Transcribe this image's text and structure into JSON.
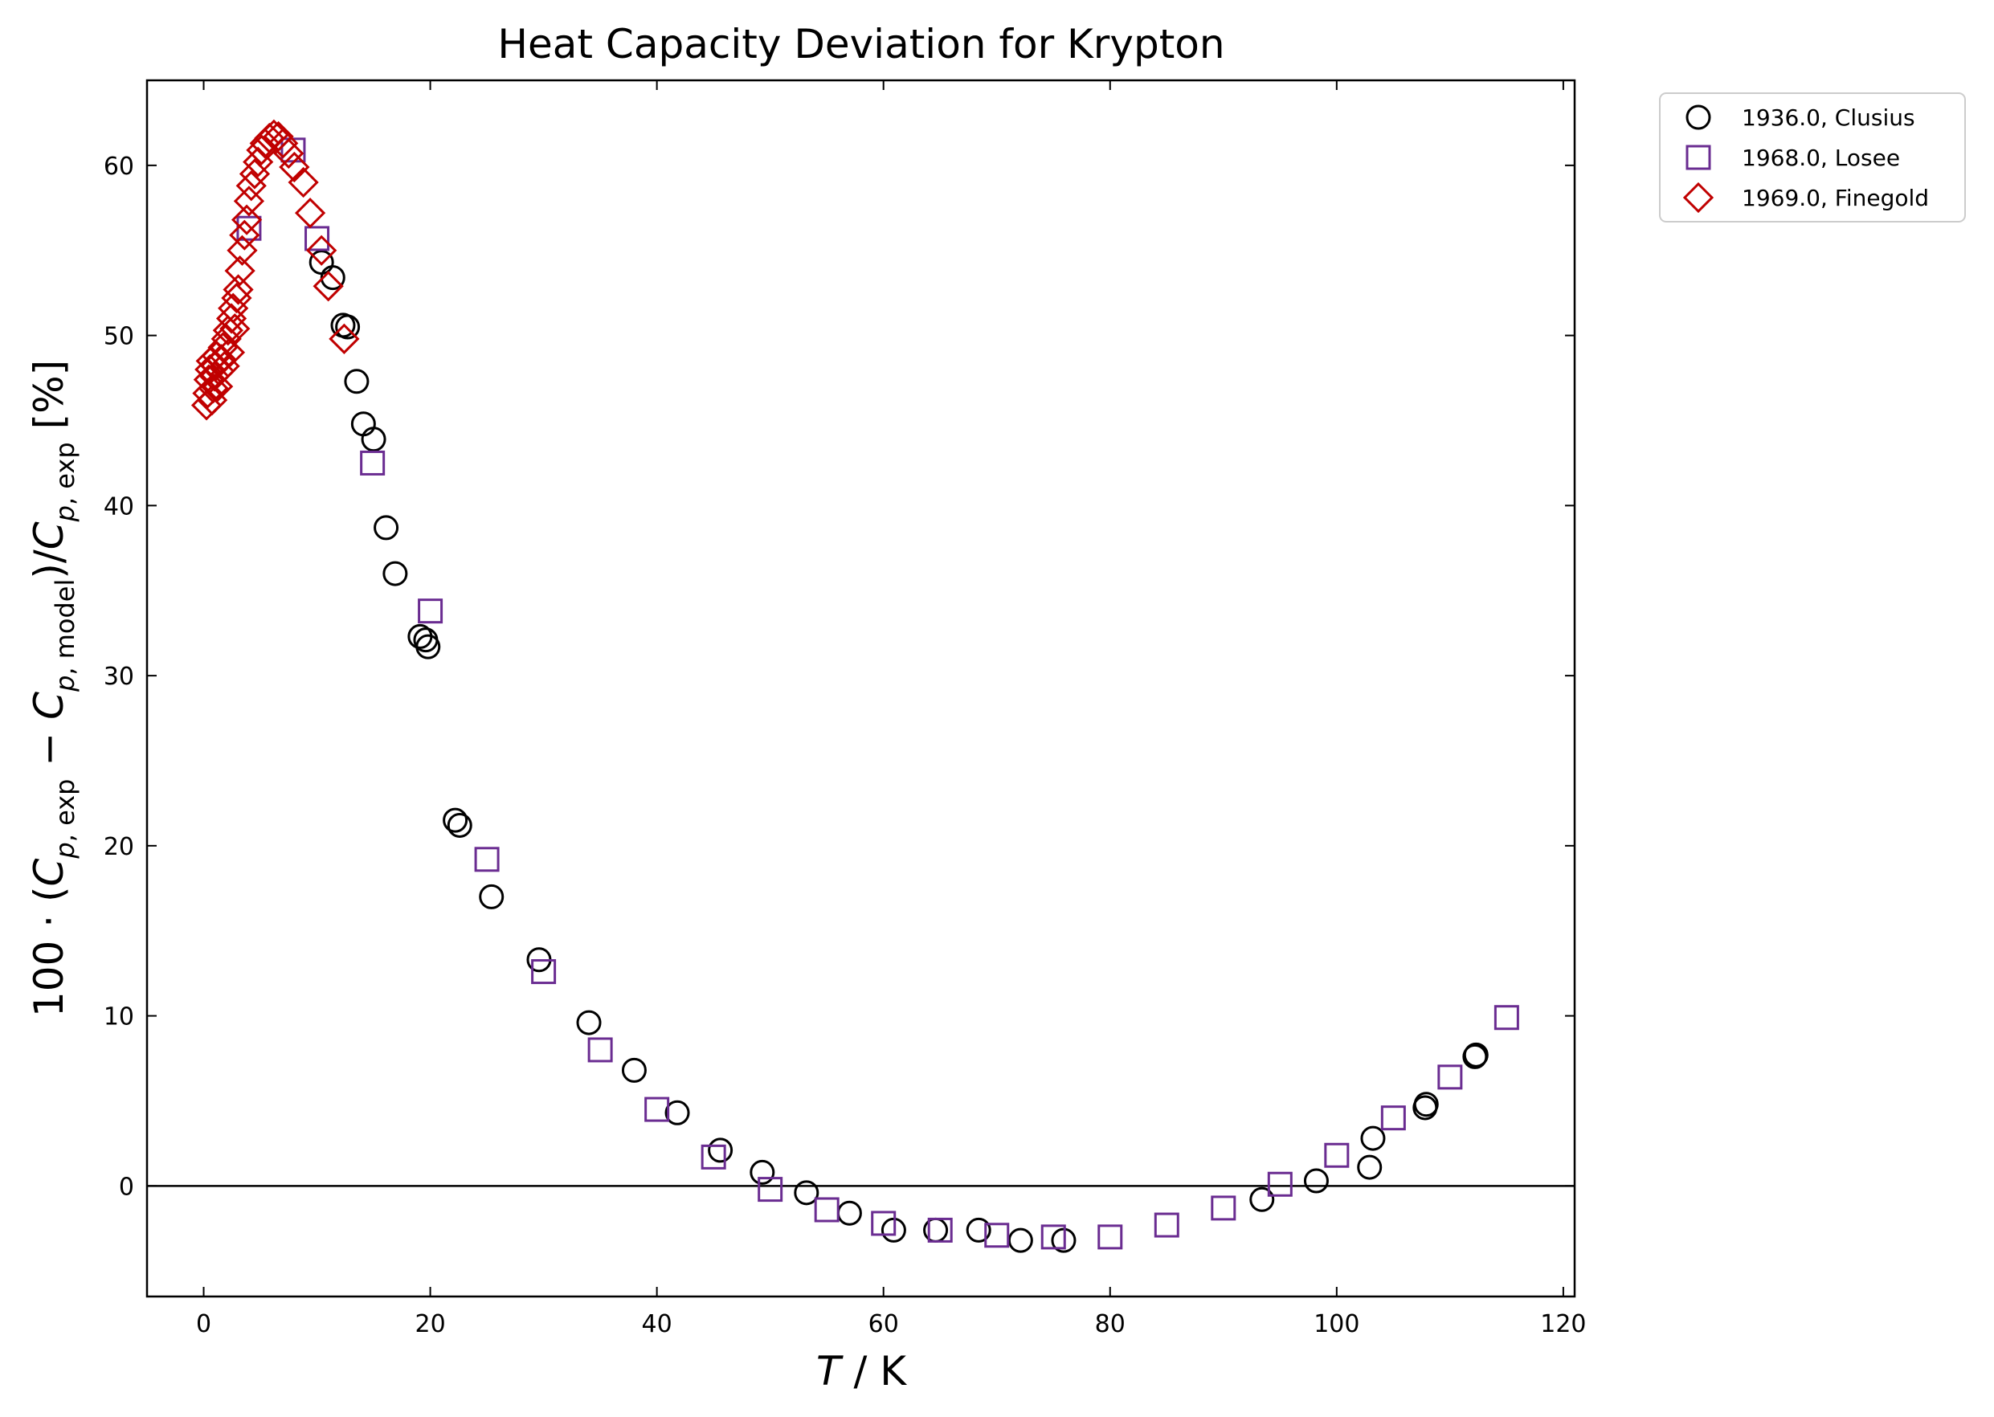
{
  "chart_data": {
    "type": "scatter",
    "title": "Heat Capacity Deviation for Krypton",
    "xlabel": "T / K",
    "ylabel": "100 · (C_p,exp − C_p,model)/C_p,exp [%]",
    "xlim": [
      -5,
      121
    ],
    "ylim": [
      -6.5,
      65
    ],
    "x_ticks": [
      0,
      20,
      40,
      60,
      80,
      100,
      120
    ],
    "y_ticks": [
      0,
      10,
      20,
      30,
      40,
      50,
      60
    ],
    "x_tick_labels": [
      "0",
      "20",
      "40",
      "60",
      "80",
      "100",
      "120"
    ],
    "y_tick_labels": [
      "0",
      "10",
      "20",
      "30",
      "40",
      "50",
      "60"
    ],
    "reference_line_y": 0,
    "legend_position": "outside-top-right",
    "series": [
      {
        "name": "1936.0, Clusius",
        "marker": "circle",
        "color": "#000000",
        "points": [
          [
            10.4,
            54.3
          ],
          [
            11.4,
            53.4
          ],
          [
            12.3,
            50.6
          ],
          [
            12.7,
            50.5
          ],
          [
            13.5,
            47.3
          ],
          [
            14.1,
            44.8
          ],
          [
            15.0,
            43.9
          ],
          [
            16.1,
            38.7
          ],
          [
            16.9,
            36.0
          ],
          [
            19.1,
            32.3
          ],
          [
            19.6,
            32.1
          ],
          [
            19.8,
            31.7
          ],
          [
            22.2,
            21.5
          ],
          [
            22.6,
            21.2
          ],
          [
            25.4,
            17.0
          ],
          [
            29.6,
            13.3
          ],
          [
            34.0,
            9.6
          ],
          [
            38.0,
            6.8
          ],
          [
            41.8,
            4.3
          ],
          [
            45.6,
            2.1
          ],
          [
            49.3,
            0.8
          ],
          [
            53.2,
            -0.4
          ],
          [
            57.0,
            -1.6
          ],
          [
            60.9,
            -2.6
          ],
          [
            64.6,
            -2.6
          ],
          [
            68.4,
            -2.6
          ],
          [
            72.1,
            -3.2
          ],
          [
            75.9,
            -3.2
          ],
          [
            93.4,
            -0.8
          ],
          [
            98.2,
            0.3
          ],
          [
            102.9,
            1.1
          ],
          [
            103.2,
            2.8
          ],
          [
            107.8,
            4.6
          ],
          [
            107.9,
            4.8
          ],
          [
            112.2,
            7.6
          ],
          [
            112.3,
            7.7
          ]
        ]
      },
      {
        "name": "1968.0, Losee",
        "marker": "square",
        "color": "#6a2c91",
        "points": [
          [
            4.0,
            56.3
          ],
          [
            7.9,
            60.9
          ],
          [
            10.0,
            55.7
          ],
          [
            14.9,
            42.5
          ],
          [
            20.0,
            33.8
          ],
          [
            25.0,
            19.2
          ],
          [
            30.0,
            12.6
          ],
          [
            35.0,
            8.0
          ],
          [
            40.0,
            4.5
          ],
          [
            45.0,
            1.7
          ],
          [
            50.0,
            -0.2
          ],
          [
            55.0,
            -1.4
          ],
          [
            60.0,
            -2.2
          ],
          [
            65.0,
            -2.6
          ],
          [
            70.0,
            -2.9
          ],
          [
            75.0,
            -3.0
          ],
          [
            80.0,
            -3.0
          ],
          [
            85.0,
            -2.3
          ],
          [
            90.0,
            -1.3
          ],
          [
            95.0,
            0.1
          ],
          [
            100.0,
            1.8
          ],
          [
            105.0,
            4.0
          ],
          [
            110.0,
            6.4
          ],
          [
            115.0,
            9.9
          ]
        ]
      },
      {
        "name": "1969.0, Finegold",
        "marker": "diamond",
        "color": "#c00000",
        "points": [
          [
            0.25,
            45.9
          ],
          [
            0.35,
            46.6
          ],
          [
            0.45,
            47.4
          ],
          [
            0.55,
            48.0
          ],
          [
            0.65,
            48.5
          ],
          [
            0.75,
            46.2
          ],
          [
            0.85,
            46.9
          ],
          [
            0.95,
            47.6
          ],
          [
            1.05,
            48.2
          ],
          [
            1.15,
            48.8
          ],
          [
            1.25,
            47.0
          ],
          [
            1.4,
            47.9
          ],
          [
            1.55,
            48.6
          ],
          [
            1.7,
            49.3
          ],
          [
            1.85,
            48.2
          ],
          [
            2.0,
            49.8
          ],
          [
            2.15,
            50.3
          ],
          [
            2.3,
            49.0
          ],
          [
            2.45,
            51.0
          ],
          [
            2.6,
            51.6
          ],
          [
            2.75,
            50.4
          ],
          [
            2.9,
            52.2
          ],
          [
            3.05,
            52.7
          ],
          [
            3.2,
            53.8
          ],
          [
            3.4,
            55.0
          ],
          [
            3.6,
            55.9
          ],
          [
            3.8,
            56.8
          ],
          [
            4.0,
            57.9
          ],
          [
            4.2,
            58.8
          ],
          [
            4.5,
            59.5
          ],
          [
            4.8,
            60.2
          ],
          [
            5.1,
            60.9
          ],
          [
            5.4,
            61.3
          ],
          [
            5.8,
            61.6
          ],
          [
            6.2,
            61.8
          ],
          [
            6.6,
            61.7
          ],
          [
            7.0,
            61.3
          ],
          [
            7.5,
            60.7
          ],
          [
            8.0,
            59.9
          ],
          [
            8.8,
            59.0
          ],
          [
            9.4,
            57.2
          ],
          [
            10.4,
            55.0
          ],
          [
            11.0,
            52.9
          ],
          [
            12.4,
            49.8
          ]
        ]
      }
    ]
  }
}
